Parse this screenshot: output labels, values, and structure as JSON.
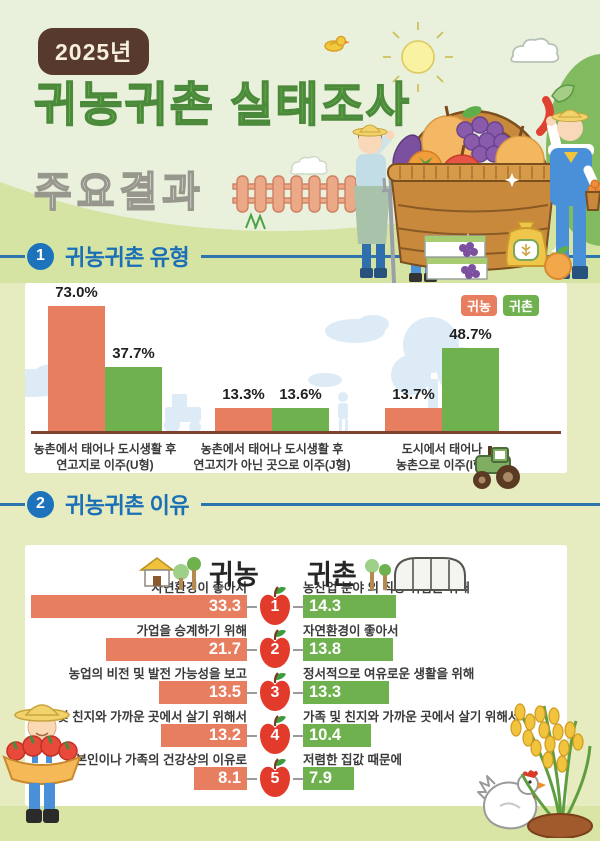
{
  "page": {
    "bg_body": "#e6ecc0",
    "bg_header": "#e9f0dc",
    "hill": "#d5e3a3",
    "bottom_strip": "#d8e5a4",
    "accent_blue": "#1c73bb",
    "baseline_brown": "#7c4430"
  },
  "header": {
    "year_badge": "2025년",
    "title": "귀농귀촌 실태조사",
    "subtitle": "주요결과"
  },
  "section1": {
    "num": "1",
    "title": "귀농귀촌 유형"
  },
  "section2": {
    "num": "2",
    "title": "귀농귀촌 이유"
  },
  "legend": {
    "items": [
      {
        "label": "귀농",
        "color": "#E87E60"
      },
      {
        "label": "귀촌",
        "color": "#6FB14F"
      }
    ]
  },
  "chart_data": [
    {
      "type": "bar",
      "title": "귀농귀촌 유형",
      "value_suffix": "%",
      "categories": [
        [
          "농촌에서 태어나 도시생활 후",
          "연고지로 이주(U형)"
        ],
        [
          "농촌에서 태어나 도시생활 후",
          "연고지가 아닌 곳으로 이주(J형)"
        ],
        [
          "도시에서 태어나",
          "농촌으로 이주(I형)"
        ]
      ],
      "series": [
        {
          "name": "귀농",
          "color": "#E87E60",
          "values": [
            73.0,
            13.3,
            13.7
          ]
        },
        {
          "name": "귀촌",
          "color": "#6FB14F",
          "values": [
            37.7,
            13.6,
            48.7
          ]
        }
      ],
      "ylim": [
        0,
        85
      ],
      "legend_position": "top-right",
      "grid": false
    },
    {
      "type": "paired-bar",
      "title": "귀농귀촌 이유",
      "left_header": "귀농",
      "right_header": "귀촌",
      "left_color": "#E87E60",
      "right_color": "#6FB14F",
      "rows": [
        {
          "rank": "1",
          "left_label": "자연환경이 좋아서",
          "left_value": 33.3,
          "right_label": "농산업 분야 외 직장 취업을 위해",
          "right_value": 14.3
        },
        {
          "rank": "2",
          "left_label": "가업을 승계하기 위해",
          "left_value": 21.7,
          "right_label": "자연환경이 좋아서",
          "right_value": 13.8
        },
        {
          "rank": "3",
          "left_label": "농업의 비전 및 발전 가능성을 보고",
          "left_value": 13.5,
          "right_label": "정서적으로 여유로운 생활을 위해",
          "right_value": 13.3
        },
        {
          "rank": "4",
          "left_label": "가족 및 친지와 가까운 곳에서 살기 위해서",
          "left_value": 13.2,
          "right_label": "가족 및 친지와 가까운 곳에서 살기 위해서",
          "right_value": 10.4
        },
        {
          "rank": "5",
          "left_label": "본인이나 가족의 건강상의 이유로",
          "left_value": 8.1,
          "right_label": "저렴한 집값 때문에",
          "right_value": 7.9
        }
      ]
    }
  ],
  "decor_icons": [
    "sun-icon",
    "bird-icon",
    "cloud-icon",
    "bush-icon",
    "picket-fence-icon",
    "grass-icon",
    "fruit-basket-icon",
    "farmer-woman-icon",
    "farmer-boy-icon",
    "farmer-man-icon",
    "grape-crate-icon",
    "grain-sack-icon",
    "pear-icon",
    "sparkle-icon",
    "tractor-icon",
    "house-icon",
    "tree-icon",
    "greenhouse-icon",
    "apple-rank-badge",
    "farmer-tomato-basket-icon",
    "chicken-icon",
    "rice-plant-icon"
  ]
}
